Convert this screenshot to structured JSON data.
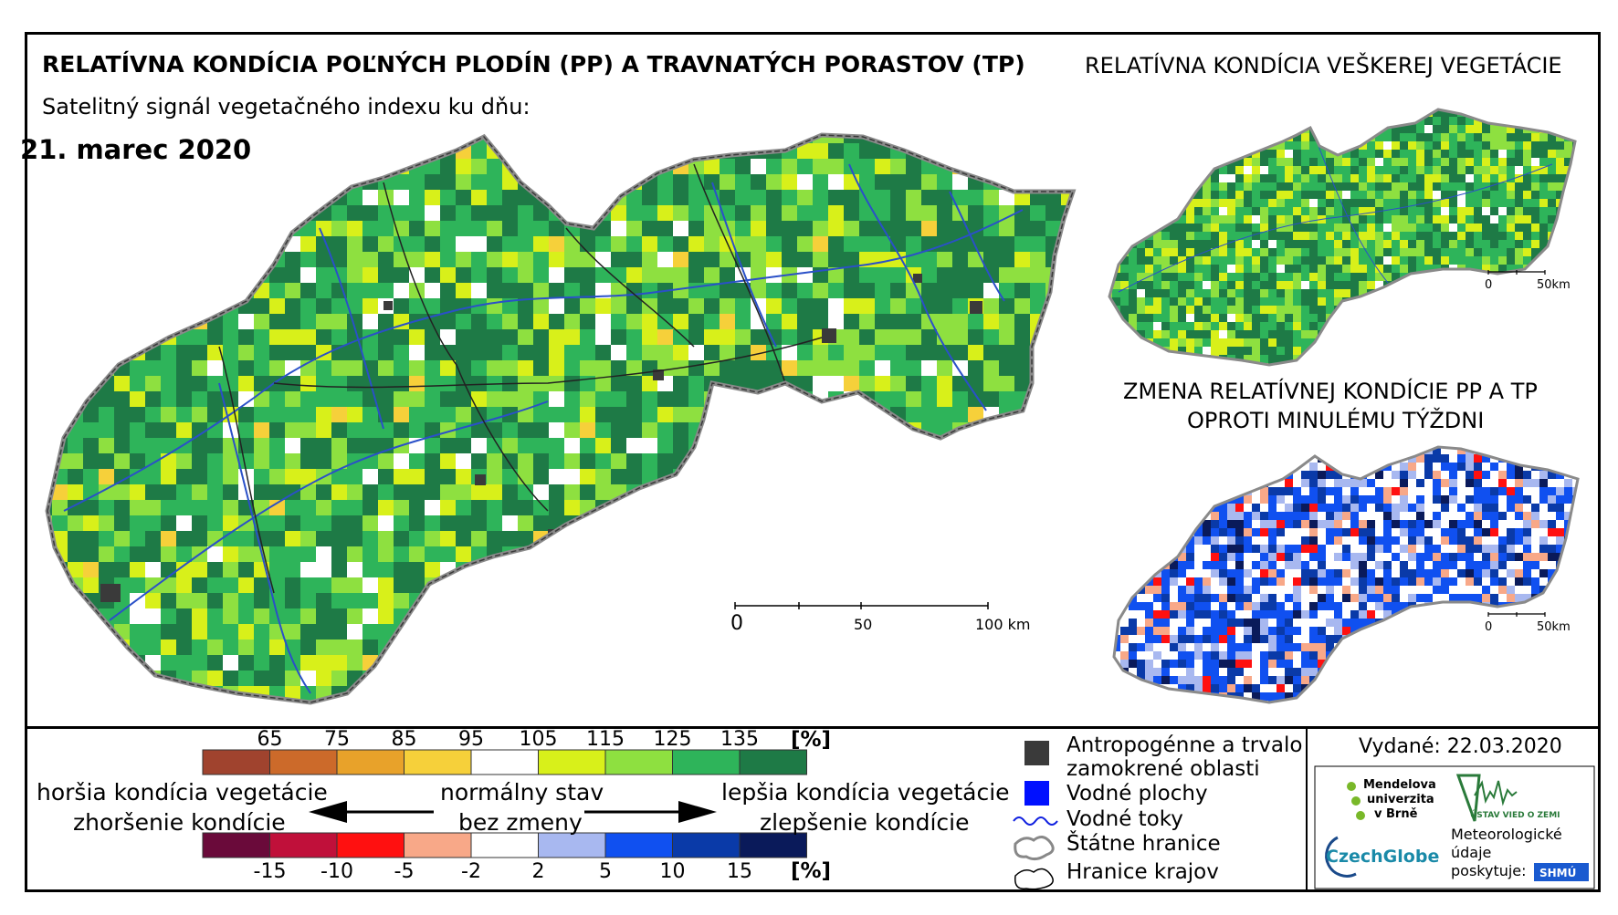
{
  "header": {
    "title": "RELATÍVNA KONDÍCIA POĽNÝCH PLODÍN (PP) A TRAVNATÝCH PORASTOV (TP)",
    "subtitle": "Satelitný signál vegetačného indexu ku dňu:",
    "date": "21. marec 2020"
  },
  "inset_top": {
    "title": "RELATÍVNA KONDÍCIA VEŠKEREJ VEGETÁCIE",
    "scale_labels": [
      "0",
      "50km"
    ]
  },
  "inset_bottom": {
    "title_line1": "ZMENA RELATÍVNEJ KONDÍCIE PP A TP",
    "title_line2": "OPROTI MINULÉMU TÝŽDNI",
    "scale_labels": [
      "0",
      "50km"
    ]
  },
  "main_scale": {
    "labels": [
      "0",
      "50",
      "100 km"
    ]
  },
  "legend": {
    "condition_ticks": [
      "65",
      "75",
      "85",
      "95",
      "105",
      "115",
      "125",
      "135"
    ],
    "condition_unit": "[%]",
    "condition_colors": [
      "#a0432e",
      "#cc6a2a",
      "#e8a22a",
      "#f6d03a",
      "#ffffff",
      "#d8f01a",
      "#8ee040",
      "#2eb45a",
      "#1e7a46"
    ],
    "change_ticks": [
      "-15",
      "-10",
      "-5",
      "-2",
      "2",
      "5",
      "10",
      "15"
    ],
    "change_unit": "[%]",
    "change_colors": [
      "#6a0a3a",
      "#c0103a",
      "#ff1010",
      "#f8a888",
      "#ffffff",
      "#a8b8f0",
      "#1050f0",
      "#0a3aa8",
      "#0a1a5a"
    ],
    "left_text1": "horšia kondícia vegetácie",
    "left_text2": "zhoršenie kondície",
    "mid_text1": "normálny stav",
    "mid_text2": "bez zmeny",
    "right_text1": "lepšia kondícia vegetácie",
    "right_text2": "zlepšenie kondície"
  },
  "symbols": {
    "anthro_line1": "Antropogénne a trvalo",
    "anthro_line2": "zamokrené oblasti",
    "water": "Vodné plochy",
    "rivers": "Vodné toky",
    "border": "Štátne hranice",
    "regions": "Hranice krajov"
  },
  "issued": "Vydané: 22.03.2020",
  "logos": {
    "mendel": [
      "Mendelova",
      "univerzita",
      "v Brně"
    ],
    "czechglobe": "CzechGlobe",
    "uvoz": "ÚSTAV VIED O ZEMI",
    "meteo": [
      "Meteorologické",
      "údaje",
      "poskytuje:"
    ],
    "shmu": "SHMÚ"
  },
  "colors": {
    "map_base": "#3aa84a",
    "border": "#8a8a8a",
    "river": "#2a50c8"
  }
}
